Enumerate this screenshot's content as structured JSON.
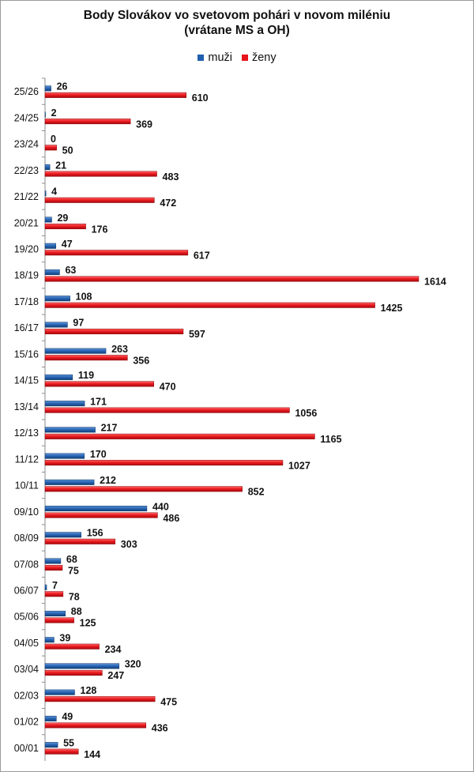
{
  "chart_data": {
    "type": "bar",
    "orientation": "horizontal",
    "title": "Body Slovákov vo svetovom pohári v novom miléniu",
    "subtitle": "(vrátane MS a OH)",
    "legend_position": "top",
    "categories": [
      "25/26",
      "24/25",
      "23/24",
      "22/23",
      "21/22",
      "20/21",
      "19/20",
      "18/19",
      "17/18",
      "16/17",
      "15/16",
      "14/15",
      "13/14",
      "12/13",
      "11/12",
      "10/11",
      "09/10",
      "08/09",
      "07/08",
      "06/07",
      "05/06",
      "04/05",
      "03/04",
      "02/03",
      "01/02",
      "00/01"
    ],
    "series": [
      {
        "name": "muži",
        "color": "#1f5fb0",
        "values": [
          26,
          2,
          0,
          21,
          4,
          29,
          47,
          63,
          108,
          97,
          263,
          119,
          171,
          217,
          170,
          212,
          440,
          156,
          68,
          7,
          88,
          39,
          320,
          128,
          49,
          55
        ]
      },
      {
        "name": "ženy",
        "color": "#e8141b",
        "values": [
          610,
          369,
          50,
          483,
          472,
          176,
          617,
          1614,
          1425,
          597,
          356,
          470,
          1056,
          1165,
          1027,
          852,
          486,
          303,
          75,
          78,
          125,
          234,
          247,
          475,
          436,
          144
        ]
      }
    ],
    "xlim": [
      0,
      1614
    ],
    "grid": false
  }
}
